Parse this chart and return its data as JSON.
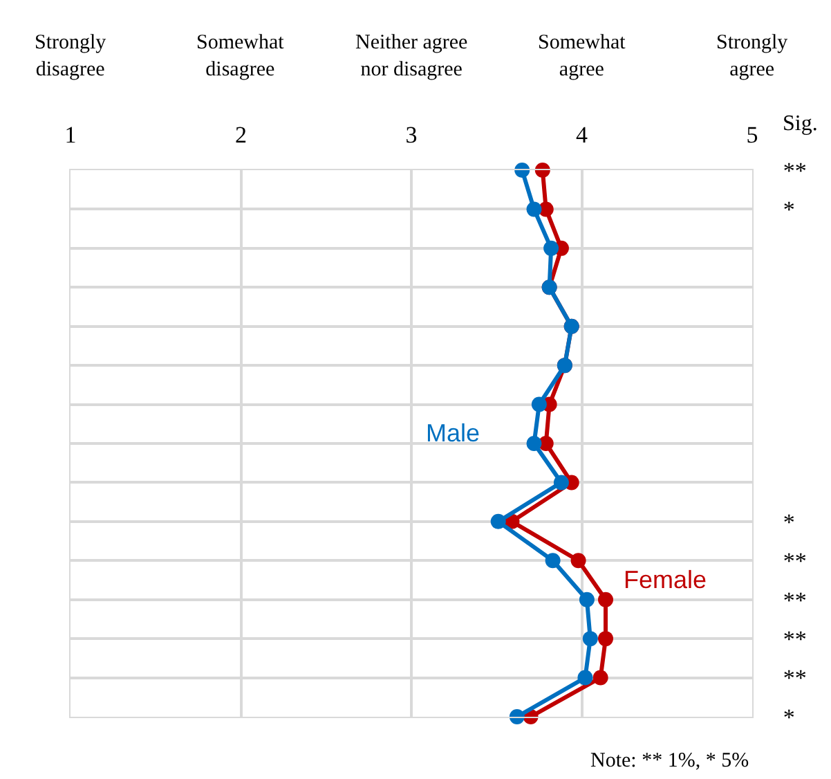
{
  "chart_data": {
    "type": "line",
    "orientation": "horizontal",
    "categories": [
      "**",
      "*",
      null,
      null,
      null,
      null,
      null,
      null,
      null,
      "*",
      "**",
      "**",
      "**",
      "**",
      "*"
    ],
    "series": [
      {
        "name": "Male",
        "color": "#0070c0",
        "values": [
          3.65,
          3.72,
          3.82,
          3.81,
          3.94,
          3.9,
          3.75,
          3.72,
          3.88,
          3.51,
          3.83,
          4.03,
          4.05,
          4.02,
          3.62
        ]
      },
      {
        "name": "Female",
        "color": "#c00000",
        "values": [
          3.77,
          3.79,
          3.88,
          3.81,
          3.94,
          3.9,
          3.81,
          3.79,
          3.94,
          3.59,
          3.98,
          4.14,
          4.14,
          4.11,
          3.7
        ]
      }
    ],
    "xlim": [
      1,
      5
    ],
    "xticks": [
      1,
      2,
      3,
      4,
      5
    ],
    "ylabel": "Sig.",
    "annotations": [
      "Strongly disagree",
      "Somewhat disagree",
      "Neither agree nor disagree",
      "Somewhat agree",
      "Strongly agree",
      "Note: ** 1%, * 5%"
    ],
    "grid": true,
    "legend": false,
    "marker": "circle",
    "line_style": "solid"
  }
}
